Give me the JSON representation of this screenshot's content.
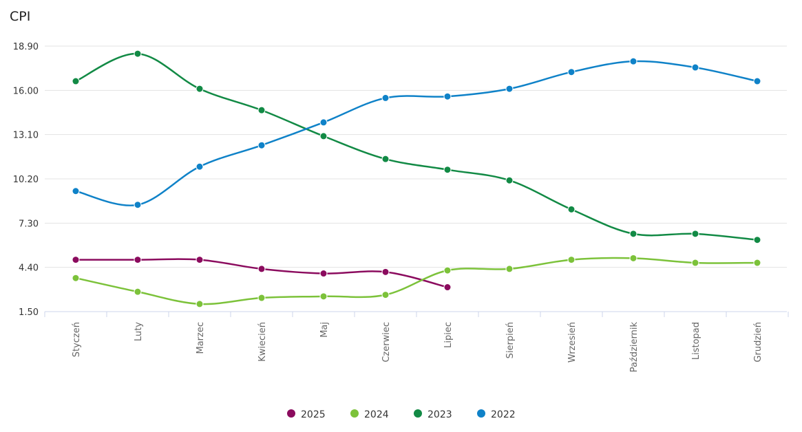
{
  "chart_data": {
    "type": "line",
    "title": "CPI",
    "categories": [
      "Styczeń",
      "Luty",
      "Marzec",
      "Kwiecień",
      "Maj",
      "Czerwiec",
      "Lipiec",
      "Sierpień",
      "Wrzesień",
      "Październik",
      "Listopad",
      "Grudzień"
    ],
    "series": [
      {
        "name": "2025",
        "color": "#8b0b5e",
        "values": [
          4.9,
          4.9,
          4.9,
          4.3,
          4.0,
          4.1,
          3.1,
          null,
          null,
          null,
          null,
          null
        ]
      },
      {
        "name": "2024",
        "color": "#7cc23a",
        "values": [
          3.7,
          2.8,
          2.0,
          2.4,
          2.5,
          2.6,
          4.2,
          4.3,
          4.9,
          5.0,
          4.7,
          4.7
        ]
      },
      {
        "name": "2023",
        "color": "#128a45",
        "values": [
          16.6,
          18.4,
          16.1,
          14.7,
          13.0,
          11.5,
          10.8,
          10.1,
          8.2,
          6.6,
          6.6,
          6.2
        ]
      },
      {
        "name": "2022",
        "color": "#0f82c8",
        "values": [
          9.4,
          8.5,
          11.0,
          12.4,
          13.9,
          15.5,
          15.6,
          16.1,
          17.2,
          17.9,
          17.5,
          16.6
        ]
      }
    ],
    "ylim": [
      1.5,
      18.9
    ],
    "yticks": [
      {
        "value": 1.5,
        "label": "1.50"
      },
      {
        "value": 4.4,
        "label": "4.40"
      },
      {
        "value": 7.3,
        "label": "7.30"
      },
      {
        "value": 10.2,
        "label": "10.20"
      },
      {
        "value": 13.1,
        "label": "13.10"
      },
      {
        "value": 16,
        "label": "16.00"
      },
      {
        "value": 18.9,
        "label": "18.90"
      }
    ],
    "grid": true,
    "legend": "bottom"
  }
}
